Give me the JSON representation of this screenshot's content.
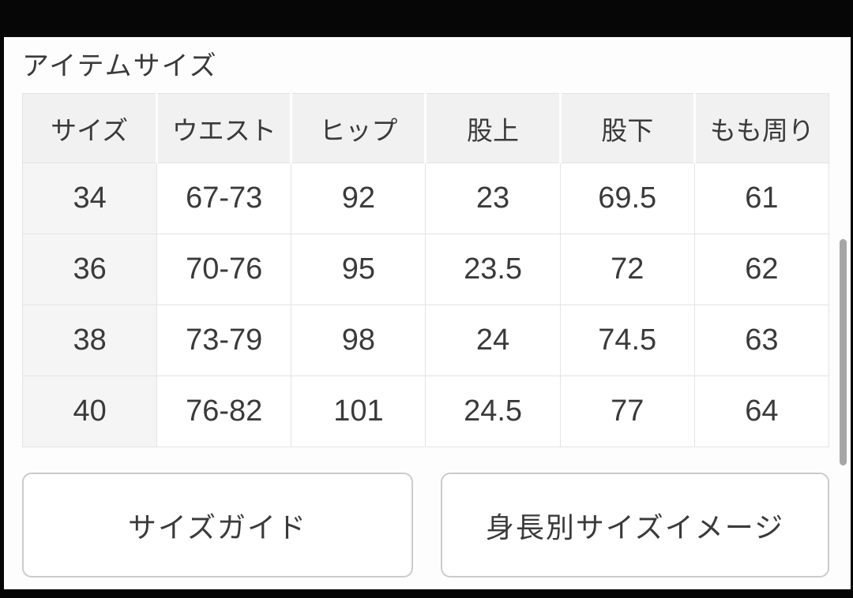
{
  "frame": {
    "title": "アイテムサイズ"
  },
  "size_table": {
    "columns": [
      "サイズ",
      "ウエスト",
      "ヒップ",
      "股上",
      "股下",
      "もも周り"
    ],
    "rows": [
      [
        "34",
        "67-73",
        "92",
        "23",
        "69.5",
        "61"
      ],
      [
        "36",
        "70-76",
        "95",
        "23.5",
        "72",
        "62"
      ],
      [
        "38",
        "73-79",
        "98",
        "24",
        "74.5",
        "63"
      ],
      [
        "40",
        "76-82",
        "101",
        "24.5",
        "77",
        "64"
      ]
    ]
  },
  "buttons": {
    "size_guide": "サイズガイド",
    "height_size_image": "身長別サイズイメージ"
  },
  "colors": {
    "letterbox": "#060606",
    "content_bg": "#fdfdfd",
    "header_cell_bg": "#f1f1f1",
    "row_header_bg": "#f5f5f5",
    "cell_border": "#e3e3e3",
    "text": "#3a3a3a",
    "button_border": "#cbcbcb",
    "scrollbar": "#a6a6a6"
  }
}
